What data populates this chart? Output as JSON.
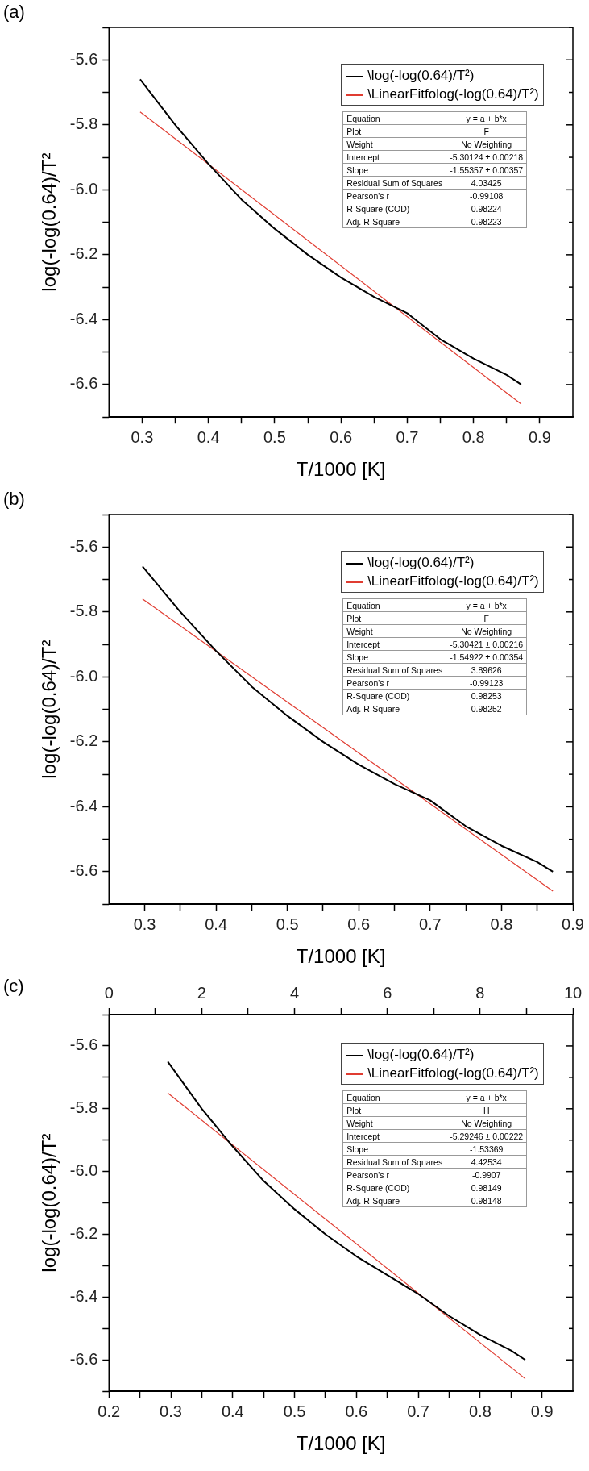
{
  "chart_data": [
    {
      "type": "line",
      "title": "(a)",
      "xlabel": "T/1000 [K]",
      "ylabel": "log(-log(0.64)/T²",
      "xlim": [
        0.25,
        0.95
      ],
      "xticks": [
        0.3,
        {
          "value": 0.35,
          "label": null
        },
        0.4,
        {
          "value": 0.45,
          "label": null
        },
        0.5,
        {
          "value": 0.55,
          "label": null
        },
        0.6,
        {
          "value": 0.65,
          "label": null
        },
        0.7,
        {
          "value": 0.75,
          "label": null
        },
        0.8,
        {
          "value": 0.85,
          "label": null
        },
        0.9
      ],
      "ylim": [
        -6.7,
        -5.5
      ],
      "yticks": [
        {
          "value": -5.5,
          "label": null
        },
        -5.6,
        {
          "value": -5.7,
          "label": null
        },
        -5.8,
        {
          "value": -5.9,
          "label": null
        },
        {
          "value": -6.0,
          "label": "-6.0"
        },
        {
          "value": -6.1,
          "label": null
        },
        -6.2,
        {
          "value": -6.3,
          "label": null
        },
        -6.4,
        {
          "value": -6.5,
          "label": null
        },
        -6.6,
        {
          "value": -6.7,
          "label": null
        }
      ],
      "grid": false,
      "legend": "top right",
      "marker": "none",
      "line_style": "solid",
      "series": [
        {
          "name": "\\log(-log(0.64)/T²)",
          "color": "#000000",
          "x": [
            0.297,
            0.35,
            0.4,
            0.45,
            0.5,
            0.55,
            0.6,
            0.65,
            0.7,
            0.75,
            0.8,
            0.85,
            0.872
          ],
          "values": [
            -5.66,
            -5.8,
            -5.92,
            -6.03,
            -6.12,
            -6.2,
            -6.27,
            -6.33,
            -6.38,
            -6.46,
            -6.52,
            -6.57,
            -6.6
          ]
        },
        {
          "name": "\\LinearFitfolog(-log(0.64)/T²)",
          "color": "#e03c31",
          "x": [
            0.297,
            0.872
          ],
          "values": [
            -5.76,
            -6.66
          ]
        }
      ],
      "annotations": [
        "Equation",
        "y = a + b*x",
        "Plot",
        "F",
        "Weight",
        "No Weighting",
        "Intercept",
        "-5.30124 ± 0.00218",
        "Slope",
        "-1.55357 ± 0.00357",
        "Residual Sum of Squares",
        "4.03425",
        "Pearson's r",
        "-0.99108",
        "R-Square (COD)",
        "0.98224",
        "Adj. R-Square",
        "0.98223"
      ]
    },
    {
      "type": "line",
      "title": "(b)",
      "xlabel": "T/1000 [K]",
      "ylabel": "log(-log(0.64)/T²",
      "xlim": [
        0.25,
        0.9
      ],
      "xticks": [
        0.3,
        {
          "value": 0.35,
          "label": null
        },
        0.4,
        {
          "value": 0.45,
          "label": null
        },
        0.5,
        {
          "value": 0.55,
          "label": null
        },
        0.6,
        {
          "value": 0.65,
          "label": null
        },
        0.7,
        {
          "value": 0.75,
          "label": null
        },
        0.8,
        {
          "value": 0.85,
          "label": null
        },
        0.9
      ],
      "ylim": [
        -6.7,
        -5.5
      ],
      "yticks": [
        {
          "value": -5.5,
          "label": null
        },
        -5.6,
        {
          "value": -5.7,
          "label": null
        },
        -5.8,
        {
          "value": -5.9,
          "label": null
        },
        {
          "value": -6.0,
          "label": "-6.0"
        },
        {
          "value": -6.1,
          "label": null
        },
        -6.2,
        {
          "value": -6.3,
          "label": null
        },
        -6.4,
        {
          "value": -6.5,
          "label": null
        },
        -6.6,
        {
          "value": -6.7,
          "label": null
        }
      ],
      "grid": false,
      "legend": "top right",
      "marker": "none",
      "line_style": "solid",
      "series": [
        {
          "name": "\\log(-log(0.64)/T²)",
          "color": "#000000",
          "x": [
            0.297,
            0.35,
            0.4,
            0.45,
            0.5,
            0.55,
            0.6,
            0.65,
            0.7,
            0.75,
            0.8,
            0.85,
            0.872
          ],
          "values": [
            -5.66,
            -5.8,
            -5.92,
            -6.03,
            -6.12,
            -6.2,
            -6.27,
            -6.33,
            -6.38,
            -6.46,
            -6.52,
            -6.57,
            -6.6
          ]
        },
        {
          "name": "\\LinearFitfolog(-log(0.64)/T²)",
          "color": "#e03c31",
          "x": [
            0.297,
            0.872
          ],
          "values": [
            -5.76,
            -6.66
          ]
        }
      ],
      "annotations": [
        "Equation",
        "y = a + b*x",
        "Plot",
        "F",
        "Weight",
        "No Weighting",
        "Intercept",
        "-5.30421 ± 0.00216",
        "Slope",
        "-1.54922 ± 0.00354",
        "Residual Sum of Squares",
        "3.89626",
        "Pearson's r",
        "-0.99123",
        "R-Square (COD)",
        "0.98253",
        "Adj. R-Square",
        "0.98252"
      ]
    },
    {
      "type": "line",
      "title": "(c)",
      "xlabel": "T/1000 [K]",
      "ylabel": "log(-log(0.64)/T²",
      "xlim": [
        0.2,
        0.95
      ],
      "xticks": [
        0.2,
        {
          "value": 0.25,
          "label": null
        },
        0.3,
        {
          "value": 0.35,
          "label": null
        },
        0.4,
        {
          "value": 0.45,
          "label": null
        },
        0.5,
        {
          "value": 0.55,
          "label": null
        },
        0.6,
        {
          "value": 0.65,
          "label": null
        },
        0.7,
        {
          "value": 0.75,
          "label": null
        },
        0.8,
        {
          "value": 0.85,
          "label": null
        },
        0.9
      ],
      "x2lim": [
        0,
        10
      ],
      "x2ticks": [
        0,
        {
          "value": 1,
          "label": null
        },
        2,
        {
          "value": 3,
          "label": null
        },
        4,
        {
          "value": 5,
          "label": null
        },
        6,
        {
          "value": 7,
          "label": null
        },
        8,
        {
          "value": 9,
          "label": null
        },
        10
      ],
      "ylim": [
        -6.7,
        -5.5
      ],
      "yticks": [
        {
          "value": -5.5,
          "label": null
        },
        -5.6,
        {
          "value": -5.7,
          "label": null
        },
        -5.8,
        {
          "value": -5.9,
          "label": null
        },
        {
          "value": -6.0,
          "label": "-6.0"
        },
        {
          "value": -6.1,
          "label": null
        },
        -6.2,
        {
          "value": -6.3,
          "label": null
        },
        -6.4,
        {
          "value": -6.5,
          "label": null
        },
        -6.6,
        {
          "value": -6.7,
          "label": null
        }
      ],
      "grid": false,
      "legend": "top right",
      "marker": "none",
      "line_style": "solid",
      "series": [
        {
          "name": "\\log(-log(0.64)/T²)",
          "color": "#000000",
          "x": [
            0.295,
            0.35,
            0.4,
            0.45,
            0.5,
            0.55,
            0.6,
            0.65,
            0.7,
            0.75,
            0.8,
            0.85,
            0.873
          ],
          "values": [
            -5.65,
            -5.8,
            -5.92,
            -6.03,
            -6.12,
            -6.2,
            -6.27,
            -6.33,
            -6.39,
            -6.46,
            -6.52,
            -6.57,
            -6.6
          ]
        },
        {
          "name": "\\LinearFitfolog(-log(0.64)/T²)",
          "color": "#e03c31",
          "x": [
            0.295,
            0.873
          ],
          "values": [
            -5.75,
            -6.66
          ]
        }
      ],
      "annotations": [
        "Equation",
        "y = a + b*x",
        "Plot",
        "H",
        "Weight",
        "No Weighting",
        "Intercept",
        "-5.29246 ± 0.00222",
        "Slope",
        "-1.53369",
        "Residual Sum of Squares",
        "4.42534",
        "Pearson's r",
        "-0.9907",
        "R-Square (COD)",
        "0.98149",
        "Adj. R-Square",
        "0.98148"
      ]
    }
  ]
}
